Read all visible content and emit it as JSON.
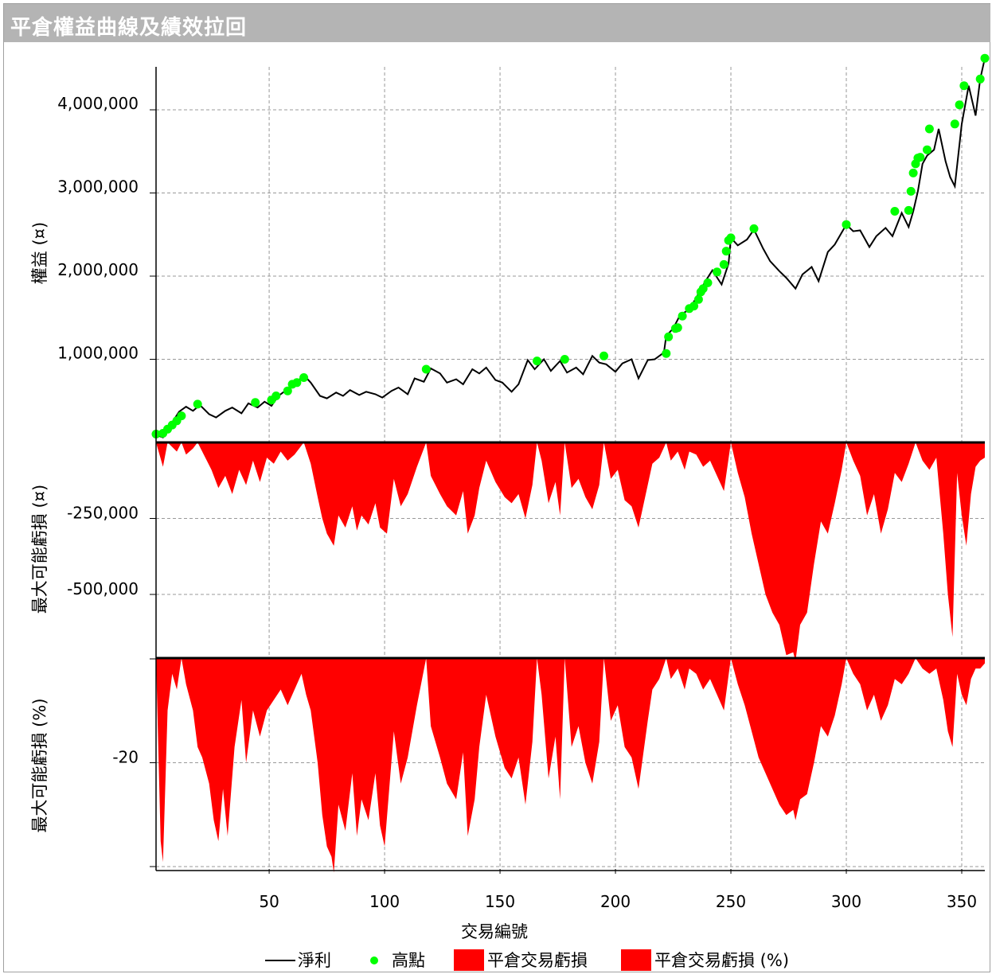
{
  "window": {
    "title": "平倉權益曲線及績效拉回"
  },
  "colors": {
    "equity_line": "#000000",
    "peak_marker": "#00ff00",
    "drawdown_fill": "#ff0000",
    "grid": "#999999"
  },
  "chart_data": [
    {
      "type": "line",
      "panel": "equity",
      "ylabel": "權益 (¤)",
      "xlim": [
        1,
        360
      ],
      "yticks": [
        1000000,
        2000000,
        3000000,
        4000000
      ],
      "ytick_labels": [
        "1,000,000",
        "2,000,000",
        "3,000,000",
        "4,000,000"
      ],
      "series": [
        {
          "name": "淨利",
          "x": [
            1,
            4,
            7,
            11,
            14,
            17,
            20,
            24,
            27,
            31,
            34,
            38,
            41,
            45,
            48,
            51,
            54,
            58,
            61,
            65,
            68,
            72,
            75,
            79,
            82,
            85,
            89,
            92,
            96,
            99,
            103,
            106,
            110,
            113,
            117,
            120,
            124,
            127,
            131,
            134,
            138,
            141,
            144,
            148,
            151,
            155,
            158,
            162,
            165,
            169,
            172,
            176,
            179,
            183,
            186,
            190,
            193,
            196,
            200,
            203,
            207,
            210,
            214,
            217,
            221,
            222,
            225,
            228,
            232,
            235,
            239,
            242,
            246,
            249,
            250,
            253,
            257,
            260,
            264,
            267,
            271,
            274,
            278,
            281,
            285,
            288,
            292,
            295,
            300,
            303,
            306,
            310,
            313,
            317,
            320,
            324,
            327,
            329,
            331,
            333,
            335,
            338,
            340,
            343,
            345,
            347,
            350,
            353,
            356,
            358,
            360
          ],
          "y": [
            90000,
            60000,
            200000,
            370000,
            430000,
            380000,
            450000,
            340000,
            300000,
            380000,
            420000,
            350000,
            470000,
            420000,
            490000,
            440000,
            560000,
            640000,
            700000,
            810000,
            720000,
            560000,
            530000,
            600000,
            560000,
            630000,
            570000,
            610000,
            580000,
            540000,
            620000,
            660000,
            580000,
            770000,
            730000,
            890000,
            830000,
            720000,
            760000,
            700000,
            880000,
            830000,
            900000,
            750000,
            720000,
            610000,
            700000,
            990000,
            880000,
            1000000,
            860000,
            980000,
            840000,
            900000,
            820000,
            1040000,
            960000,
            940000,
            850000,
            950000,
            1000000,
            770000,
            990000,
            1000000,
            1080000,
            1280000,
            1370000,
            1530000,
            1600000,
            1740000,
            1940000,
            2070000,
            1900000,
            2150000,
            2460000,
            2370000,
            2440000,
            2560000,
            2330000,
            2180000,
            2060000,
            1980000,
            1850000,
            2020000,
            2110000,
            1940000,
            2290000,
            2380000,
            2620000,
            2540000,
            2550000,
            2350000,
            2480000,
            2580000,
            2480000,
            2760000,
            2590000,
            2780000,
            3020000,
            3350000,
            3450000,
            3520000,
            3770000,
            3380000,
            3190000,
            3080000,
            3830000,
            4290000,
            3930000,
            4370000,
            4620000
          ]
        },
        {
          "name": "高點",
          "x": [
            1,
            4,
            6,
            8,
            10,
            12,
            19,
            44,
            51,
            53,
            58,
            60,
            62,
            65,
            118,
            166,
            178,
            195,
            222,
            223,
            226,
            227,
            229,
            232,
            234,
            236,
            237,
            238,
            240,
            244,
            247,
            248,
            249,
            250,
            260,
            300,
            321,
            327,
            328,
            329,
            330,
            331,
            332,
            335,
            336,
            347,
            349,
            351,
            358,
            360
          ],
          "y": [
            100000,
            110000,
            160000,
            210000,
            260000,
            320000,
            460000,
            480000,
            510000,
            560000,
            620000,
            700000,
            720000,
            780000,
            880000,
            980000,
            1000000,
            1040000,
            1070000,
            1270000,
            1370000,
            1380000,
            1520000,
            1610000,
            1640000,
            1720000,
            1810000,
            1850000,
            1920000,
            2050000,
            2140000,
            2300000,
            2430000,
            2460000,
            2570000,
            2620000,
            2780000,
            2790000,
            3020000,
            3240000,
            3350000,
            3420000,
            3430000,
            3520000,
            3770000,
            3830000,
            4060000,
            4290000,
            4370000,
            4620000
          ]
        }
      ]
    },
    {
      "type": "area",
      "panel": "drawdown_abs",
      "ylabel": "最大可能虧損 (¤)",
      "yticks": [
        -250000,
        -500000
      ],
      "ytick_labels": [
        "-250,000",
        "-500,000"
      ],
      "series": [
        {
          "name": "平倉交易虧損",
          "x": [
            1,
            4,
            6,
            10,
            12,
            14,
            17,
            19,
            23,
            25,
            28,
            31,
            34,
            37,
            40,
            43,
            46,
            49,
            52,
            55,
            58,
            61,
            65,
            68,
            71,
            73,
            75,
            78,
            80,
            83,
            86,
            88,
            90,
            93,
            96,
            98,
            101,
            104,
            107,
            110,
            114,
            118,
            120,
            124,
            127,
            131,
            134,
            136,
            139,
            141,
            144,
            148,
            152,
            155,
            158,
            161,
            164,
            166,
            168,
            171,
            174,
            176,
            178,
            181,
            184,
            187,
            190,
            193,
            195,
            198,
            201,
            204,
            207,
            210,
            214,
            216,
            219,
            222,
            224,
            227,
            230,
            232,
            235,
            238,
            241,
            244,
            247,
            250,
            253,
            256,
            259,
            262,
            265,
            268,
            271,
            274,
            277,
            278,
            280,
            283,
            286,
            289,
            292,
            295,
            298,
            300,
            303,
            306,
            309,
            312,
            315,
            318,
            321,
            324,
            327,
            330,
            333,
            336,
            339,
            342,
            344,
            346,
            348,
            350,
            352,
            354,
            356,
            358,
            360
          ],
          "y": [
            0,
            -80000,
            0,
            -30000,
            0,
            -40000,
            -20000,
            0,
            -60000,
            -90000,
            -150000,
            -110000,
            -170000,
            -90000,
            -140000,
            -60000,
            -130000,
            -50000,
            -70000,
            -30000,
            -60000,
            -40000,
            0,
            -70000,
            -180000,
            -250000,
            -300000,
            -340000,
            -240000,
            -280000,
            -210000,
            -290000,
            -240000,
            -270000,
            -200000,
            -280000,
            -300000,
            -120000,
            -210000,
            -170000,
            -80000,
            0,
            -110000,
            -170000,
            -210000,
            -240000,
            -160000,
            -300000,
            -240000,
            -150000,
            -60000,
            -130000,
            -180000,
            -200000,
            -170000,
            -250000,
            -140000,
            0,
            -60000,
            -200000,
            -130000,
            -240000,
            0,
            -150000,
            -120000,
            -180000,
            -220000,
            -140000,
            0,
            -120000,
            -90000,
            -190000,
            -210000,
            -280000,
            -140000,
            -70000,
            -50000,
            0,
            -60000,
            -30000,
            -90000,
            -30000,
            -40000,
            -80000,
            -60000,
            -110000,
            -160000,
            0,
            -100000,
            -180000,
            -300000,
            -400000,
            -500000,
            -560000,
            -600000,
            -700000,
            -690000,
            -720000,
            -600000,
            -560000,
            -400000,
            -260000,
            -300000,
            -200000,
            -90000,
            0,
            -60000,
            -110000,
            -240000,
            -170000,
            -300000,
            -220000,
            -100000,
            -130000,
            -70000,
            0,
            -60000,
            -90000,
            -50000,
            -300000,
            -500000,
            -640000,
            -100000,
            -240000,
            -340000,
            -170000,
            -80000,
            -60000,
            -50000
          ]
        }
      ]
    },
    {
      "type": "area",
      "panel": "drawdown_pct",
      "ylabel": "最大可能虧損 (%)",
      "xlabel": "交易編號",
      "xticks": [
        50,
        100,
        150,
        200,
        250,
        300,
        350
      ],
      "yticks": [
        -20
      ],
      "ytick_labels": [
        "-20"
      ],
      "series": [
        {
          "name": "平倉交易虧損 (%)",
          "x": [
            1,
            3,
            4,
            6,
            8,
            10,
            12,
            14,
            17,
            19,
            21,
            24,
            26,
            28,
            30,
            32,
            35,
            38,
            40,
            43,
            46,
            49,
            52,
            55,
            58,
            61,
            64,
            66,
            68,
            71,
            73,
            75,
            77,
            78,
            80,
            83,
            86,
            88,
            90,
            93,
            96,
            98,
            100,
            104,
            107,
            110,
            114,
            118,
            120,
            124,
            127,
            131,
            134,
            136,
            139,
            141,
            144,
            148,
            152,
            155,
            158,
            161,
            164,
            166,
            168,
            171,
            174,
            176,
            178,
            181,
            184,
            187,
            190,
            193,
            195,
            198,
            201,
            204,
            207,
            210,
            214,
            216,
            219,
            222,
            224,
            227,
            230,
            232,
            235,
            238,
            241,
            244,
            247,
            250,
            253,
            256,
            259,
            262,
            265,
            268,
            271,
            274,
            277,
            278,
            280,
            283,
            286,
            289,
            292,
            295,
            298,
            300,
            303,
            306,
            309,
            312,
            315,
            318,
            321,
            324,
            327,
            330,
            333,
            336,
            339,
            342,
            344,
            346,
            348,
            350,
            352,
            354,
            356,
            358,
            360
          ],
          "y": [
            0,
            -35,
            -39,
            -10,
            -3,
            -6,
            0,
            -5,
            -10,
            -17,
            -19,
            -24,
            -31,
            -35,
            -25,
            -34,
            -17,
            -8,
            -20,
            -10,
            -15,
            -10,
            -8,
            -6,
            -9,
            -6,
            -3,
            -7,
            -10,
            -20,
            -30,
            -36,
            -38,
            -41,
            -28,
            -33,
            -22,
            -34,
            -27,
            -31,
            -22,
            -32,
            -36,
            -14,
            -24,
            -19,
            -9,
            0,
            -13,
            -19,
            -24,
            -27,
            -18,
            -34,
            -27,
            -17,
            -7,
            -15,
            -21,
            -23,
            -19,
            -28,
            -16,
            0,
            -7,
            -23,
            -15,
            -27,
            0,
            -17,
            -13,
            -20,
            -24,
            -16,
            0,
            -12,
            -9,
            -17,
            -19,
            -25,
            -12,
            -6,
            -4,
            0,
            -4,
            -2,
            -6,
            -2,
            -3,
            -6,
            -4,
            -7,
            -10,
            0,
            -5,
            -9,
            -14,
            -19,
            -22,
            -25,
            -28,
            -30,
            -29,
            -31,
            -27,
            -26,
            -20,
            -13,
            -15,
            -11,
            -5,
            0,
            -3,
            -5,
            -10,
            -7,
            -12,
            -9,
            -4,
            -5,
            -3,
            0,
            -2,
            -3,
            -2,
            -8,
            -14,
            -17,
            -3,
            -7,
            -9,
            -4,
            -2,
            -2,
            -1
          ]
        }
      ]
    }
  ]
}
